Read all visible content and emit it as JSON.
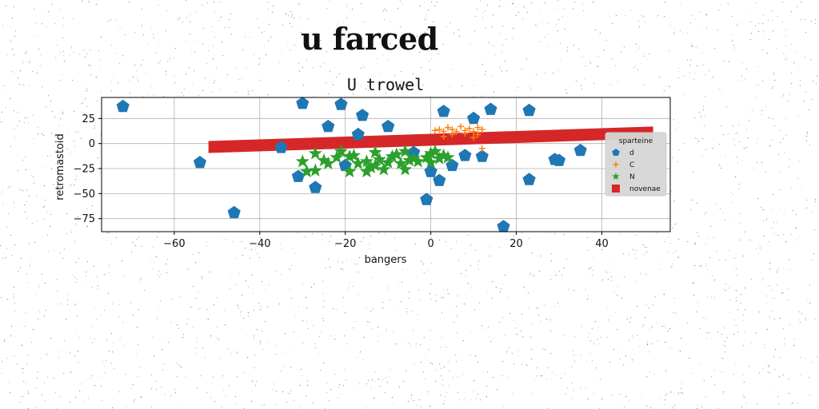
{
  "page": {
    "title": "u farced"
  },
  "chart_data": {
    "type": "scatter",
    "title": "U trowel",
    "xlabel": "bangers",
    "ylabel": "retromastoid",
    "xlim": [
      -77,
      56
    ],
    "ylim": [
      -88,
      46
    ],
    "xticks": [
      -60,
      -40,
      -20,
      0,
      20,
      40
    ],
    "yticks": [
      25,
      0,
      -25,
      -50,
      -75
    ],
    "grid": true,
    "legend": {
      "title": "sparteine",
      "placement": "center-right"
    },
    "series": [
      {
        "name": "d",
        "marker": "pentagon",
        "color": "#1f77b4",
        "points": [
          [
            -72,
            37
          ],
          [
            -54,
            -19
          ],
          [
            -46,
            -69
          ],
          [
            -31,
            -33
          ],
          [
            -30,
            40
          ],
          [
            -27,
            -44
          ],
          [
            -24,
            17
          ],
          [
            -21,
            39
          ],
          [
            -20,
            -22
          ],
          [
            -17,
            9
          ],
          [
            -16,
            28
          ],
          [
            -10,
            17
          ],
          [
            -35,
            -4
          ],
          [
            -4,
            -9
          ],
          [
            -1,
            -56
          ],
          [
            0,
            -28
          ],
          [
            2,
            -37
          ],
          [
            3,
            32
          ],
          [
            5,
            -22
          ],
          [
            8,
            -12
          ],
          [
            10,
            25
          ],
          [
            12,
            -13
          ],
          [
            14,
            34
          ],
          [
            17,
            -83
          ],
          [
            23,
            -36
          ],
          [
            23,
            33
          ],
          [
            29,
            -16
          ],
          [
            30,
            -17
          ],
          [
            35,
            -7
          ]
        ]
      },
      {
        "name": "C",
        "marker": "plus",
        "color": "#ff7f0e",
        "points": [
          [
            1,
            13
          ],
          [
            2,
            14
          ],
          [
            3,
            12
          ],
          [
            4,
            16
          ],
          [
            5,
            14
          ],
          [
            6,
            12
          ],
          [
            7,
            17
          ],
          [
            8,
            13
          ],
          [
            9,
            15
          ],
          [
            10,
            12
          ],
          [
            11,
            16
          ],
          [
            12,
            14
          ],
          [
            5,
            9
          ],
          [
            8,
            10
          ],
          [
            11,
            9
          ],
          [
            12,
            -5
          ],
          [
            3,
            7
          ],
          [
            10,
            6
          ]
        ]
      },
      {
        "name": "N",
        "marker": "star",
        "color": "#2ca02c",
        "points": [
          [
            -30,
            -18
          ],
          [
            -29,
            -28
          ],
          [
            -27,
            -27
          ],
          [
            -27,
            -10
          ],
          [
            -25,
            -17
          ],
          [
            -24,
            -20
          ],
          [
            -22,
            -14
          ],
          [
            -21,
            -8
          ],
          [
            -19,
            -13
          ],
          [
            -19,
            -28
          ],
          [
            -17,
            -20
          ],
          [
            -15,
            -18
          ],
          [
            -15,
            -28
          ],
          [
            -14,
            -24
          ],
          [
            -13,
            -9
          ],
          [
            -12,
            -16
          ],
          [
            -11,
            -26
          ],
          [
            -10,
            -19
          ],
          [
            -9,
            -13
          ],
          [
            -8,
            -11
          ],
          [
            -7,
            -20
          ],
          [
            -6,
            -26
          ],
          [
            -5,
            -17
          ],
          [
            -4,
            -15
          ],
          [
            -3,
            -18
          ],
          [
            -1,
            -14
          ],
          [
            0,
            -10
          ],
          [
            1,
            -8
          ],
          [
            2,
            -15
          ],
          [
            3,
            -12
          ],
          [
            4,
            -14
          ],
          [
            -18,
            -12
          ],
          [
            -13,
            -22
          ],
          [
            -6,
            -8
          ],
          [
            0,
            -19
          ]
        ]
      },
      {
        "name": "novenae",
        "marker": "square",
        "color": "#d62728",
        "start": [
          -52,
          -3.5
        ],
        "end": [
          52,
          11
        ],
        "thickness": 15
      }
    ]
  }
}
